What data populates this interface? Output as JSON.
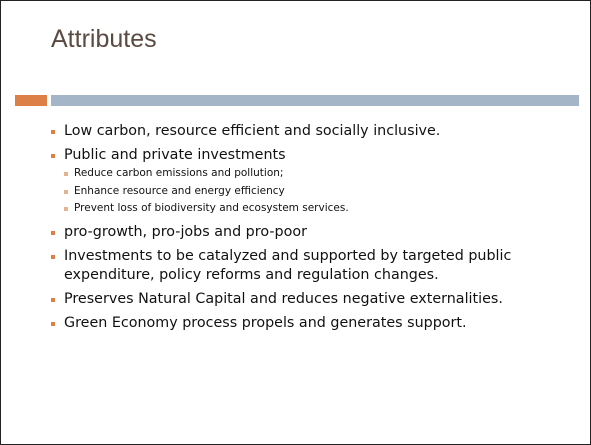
{
  "slide": {
    "title": "Attributes",
    "bullets": [
      {
        "text": "Low carbon, resource efficient and socially inclusive."
      },
      {
        "text": "Public and private investments",
        "subbullets": [
          "Reduce carbon emissions and pollution;",
          "Enhance resource and energy efficiency",
          "Prevent loss of biodiversity and ecosystem services."
        ]
      },
      {
        "text": "pro-growth, pro-jobs and pro-poor"
      },
      {
        "text": "Investments to be catalyzed and supported by targeted public expenditure, policy reforms and regulation changes."
      },
      {
        "text": "Preserves Natural Capital and reduces negative externalities."
      },
      {
        "text": "Green Economy process propels and generates support."
      }
    ]
  }
}
